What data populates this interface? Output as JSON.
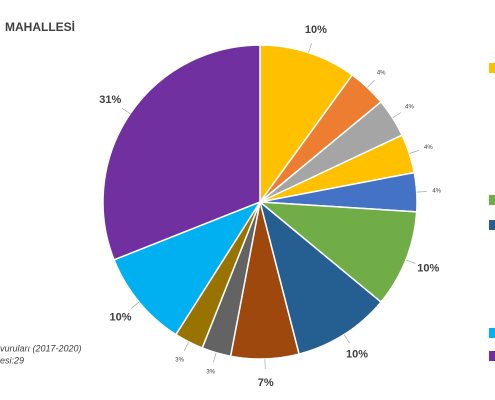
{
  "chart_data": {
    "type": "pie",
    "title": "MAHALLESİ",
    "source": [
      "vuruları (2017-2020)",
      "esi:29"
    ],
    "categories": [
      null,
      null,
      null,
      null,
      null,
      null,
      null,
      null,
      null,
      null,
      null,
      null
    ],
    "values": [
      10,
      4,
      4,
      4,
      4,
      10,
      10,
      7,
      3,
      3,
      10,
      31
    ],
    "value_labels": [
      "10%",
      "4%",
      "4%",
      "4%",
      "4%",
      "10%",
      "10%",
      "7%",
      "3%",
      "3%",
      "10%",
      "31%"
    ],
    "colors": [
      "#ffc000",
      "#ed7d31",
      "#a5a5a5",
      "#ffc000",
      "#4472c4",
      "#70ad47",
      "#255e91",
      "#9e480e",
      "#636363",
      "#997300",
      "#00b0f0",
      "#7030a0"
    ]
  }
}
